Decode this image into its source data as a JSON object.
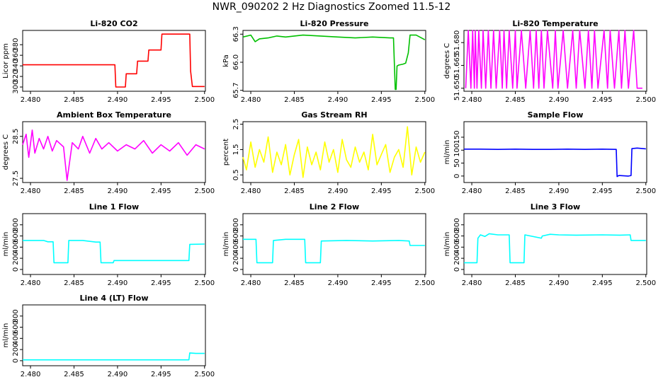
{
  "main_title": "NWR_090202  2 Hz Diagnostics Zoomed 11.5-12",
  "x_ticks": [
    "2.480",
    "2.485",
    "2.490",
    "2.495",
    "2.500"
  ],
  "chart_data": [
    {
      "type": "line",
      "title": "Li-820 CO2",
      "ylabel": "Licor ppm",
      "xlim": [
        2.4791,
        2.5001
      ],
      "ylim": [
        292,
        407
      ],
      "yticks": [
        "300",
        "320",
        "340",
        "360",
        "380"
      ],
      "color": "#ff0000",
      "x": [
        2.4791,
        2.4897,
        2.4898,
        2.4909,
        2.491,
        2.4922,
        2.4923,
        2.4935,
        2.4936,
        2.495,
        2.4951,
        2.4983,
        2.4984,
        2.4986,
        2.5
      ],
      "y": [
        342,
        342,
        300,
        300,
        325,
        325,
        349,
        349,
        370,
        370,
        400,
        400,
        330,
        301,
        301
      ]
    },
    {
      "type": "line",
      "title": "Li-820 Pressure",
      "ylabel": "kPa",
      "xlim": [
        2.4791,
        2.5001
      ],
      "ylim": [
        65.69,
        66.34
      ],
      "yticks": [
        "65.7",
        "66.0",
        "66.3"
      ],
      "color": "#00c000",
      "x": [
        2.4791,
        2.48,
        2.4805,
        2.481,
        2.482,
        2.483,
        2.484,
        2.486,
        2.488,
        2.49,
        2.492,
        2.494,
        2.496,
        2.4964,
        2.4966,
        2.4967,
        2.4968,
        2.497,
        2.4975,
        2.4978,
        2.4981,
        2.4983,
        2.499,
        2.5
      ],
      "y": [
        66.27,
        66.29,
        66.22,
        66.25,
        66.26,
        66.28,
        66.27,
        66.29,
        66.28,
        66.27,
        66.26,
        66.27,
        66.26,
        66.26,
        65.71,
        65.71,
        65.96,
        65.97,
        65.98,
        65.99,
        66.1,
        66.29,
        66.29,
        66.24
      ]
    },
    {
      "type": "line",
      "title": "Li-820 Temperature",
      "ylabel": "degrees C",
      "xlim": [
        2.4791,
        2.5001
      ],
      "ylim": [
        51.648,
        51.688
      ],
      "yticks": [
        "51.650",
        "51.665",
        "51.680"
      ],
      "color": "#ff00ff",
      "x": [
        2.4793,
        2.4796,
        2.4799,
        2.4801,
        2.4803,
        2.4804,
        2.4806,
        2.4808,
        2.4811,
        2.4813,
        2.4816,
        2.4819,
        2.4822,
        2.4825,
        2.4828,
        2.4832,
        2.4835,
        2.4837,
        2.484,
        2.4843,
        2.4847,
        2.485,
        2.4852,
        2.4857,
        2.4862,
        2.4867,
        2.4871,
        2.4874,
        2.4877,
        2.488,
        2.4883,
        2.4887,
        2.4893,
        2.4896,
        2.4899,
        2.4905,
        2.491,
        2.4916,
        2.492,
        2.4924,
        2.493,
        2.4934,
        2.4938,
        2.4941,
        2.4945,
        2.4952,
        2.4956,
        2.4959,
        2.4964,
        2.4969,
        2.4972,
        2.4976,
        2.498,
        2.4986,
        2.499,
        2.4996
      ],
      "y": [
        51.65,
        51.688,
        51.65,
        51.688,
        51.65,
        51.688,
        51.65,
        51.688,
        51.65,
        51.688,
        51.65,
        51.688,
        51.65,
        51.688,
        51.65,
        51.688,
        51.65,
        51.688,
        51.65,
        51.688,
        51.65,
        51.688,
        51.65,
        51.688,
        51.65,
        51.688,
        51.65,
        51.688,
        51.65,
        51.688,
        51.65,
        51.688,
        51.65,
        51.688,
        51.65,
        51.688,
        51.65,
        51.688,
        51.65,
        51.688,
        51.65,
        51.688,
        51.65,
        51.688,
        51.65,
        51.688,
        51.65,
        51.688,
        51.65,
        51.688,
        51.65,
        51.688,
        51.65,
        51.688,
        51.65,
        51.65
      ]
    },
    {
      "type": "line",
      "title": "Ambient Box Temperature",
      "ylabel": "degrees C",
      "xlim": [
        2.4791,
        2.5001
      ],
      "ylim": [
        27.4,
        28.85
      ],
      "yticks": [
        "27.5",
        "28.5"
      ],
      "color": "#ff00ff",
      "x": [
        2.4791,
        2.4795,
        2.4798,
        2.4802,
        2.4805,
        2.481,
        2.4815,
        2.482,
        2.4825,
        2.483,
        2.4838,
        2.4842,
        2.4848,
        2.4855,
        2.486,
        2.4868,
        2.4875,
        2.4882,
        2.489,
        2.49,
        2.491,
        2.492,
        2.493,
        2.494,
        2.495,
        2.496,
        2.497,
        2.498,
        2.499,
        2.5
      ],
      "y": [
        28.3,
        28.55,
        28.0,
        28.65,
        28.1,
        28.45,
        28.2,
        28.5,
        28.15,
        28.4,
        28.25,
        27.45,
        28.35,
        28.2,
        28.5,
        28.1,
        28.45,
        28.2,
        28.35,
        28.15,
        28.3,
        28.2,
        28.4,
        28.1,
        28.3,
        28.15,
        28.35,
        28.05,
        28.3,
        28.2
      ]
    },
    {
      "type": "line",
      "title": "Gas Stream RH",
      "ylabel": "percent",
      "xlim": [
        2.4791,
        2.5001
      ],
      "ylim": [
        0.2,
        2.6
      ],
      "yticks": [
        "0.5",
        "1.5",
        "2.5"
      ],
      "color": "#ffff00",
      "x": [
        2.4791,
        2.4795,
        2.48,
        2.4805,
        2.481,
        2.4815,
        2.482,
        2.4825,
        2.483,
        2.4835,
        2.484,
        2.4845,
        2.485,
        2.4855,
        2.486,
        2.4865,
        2.487,
        2.4875,
        2.488,
        2.4885,
        2.489,
        2.4895,
        2.49,
        2.4905,
        2.491,
        2.4915,
        2.492,
        2.4925,
        2.493,
        2.4935,
        2.494,
        2.4945,
        2.495,
        2.4955,
        2.496,
        2.4965,
        2.497,
        2.4975,
        2.498,
        2.4985,
        2.499,
        2.4995,
        2.5
      ],
      "y": [
        1.2,
        0.7,
        1.8,
        0.8,
        1.5,
        1.0,
        2.0,
        0.6,
        1.4,
        0.9,
        1.7,
        0.5,
        1.3,
        1.9,
        0.4,
        1.6,
        0.9,
        1.4,
        0.7,
        1.8,
        1.0,
        1.5,
        0.6,
        1.9,
        1.1,
        0.8,
        1.6,
        1.0,
        1.4,
        0.7,
        2.1,
        0.9,
        1.3,
        1.7,
        0.6,
        1.2,
        1.5,
        0.8,
        2.4,
        0.5,
        1.6,
        1.0,
        1.4
      ]
    },
    {
      "type": "line",
      "title": "Sample Flow",
      "ylabel": "ml/min",
      "xlim": [
        2.4791,
        2.5001
      ],
      "ylim": [
        -25,
        210
      ],
      "yticks": [
        "0",
        "50",
        "100",
        "150"
      ],
      "color": "#0000ff",
      "x": [
        2.4791,
        2.481,
        2.483,
        2.485,
        2.487,
        2.489,
        2.491,
        2.493,
        2.495,
        2.4966,
        2.4967,
        2.4969,
        2.498,
        2.4983,
        2.4984,
        2.499,
        2.5
      ],
      "y": [
        104,
        104,
        103,
        104,
        103,
        103,
        104,
        103,
        104,
        103,
        -2,
        2,
        0,
        2,
        106,
        108,
        105
      ]
    },
    {
      "type": "line",
      "title": "Line 1 Flow",
      "ylabel": "ml/min",
      "xlim": [
        2.4791,
        2.5001
      ],
      "ylim": [
        -90,
        1000
      ],
      "yticks": [
        "0",
        "200",
        "400",
        "600",
        "800"
      ],
      "color": "#00ffff",
      "x": [
        2.4791,
        2.4815,
        2.482,
        2.4826,
        2.4827,
        2.4843,
        2.4844,
        2.486,
        2.4875,
        2.488,
        2.4881,
        2.4895,
        2.4896,
        2.4982,
        2.4983,
        2.5
      ],
      "y": [
        520,
        520,
        495,
        495,
        120,
        120,
        520,
        520,
        490,
        490,
        120,
        120,
        160,
        160,
        450,
        455
      ]
    },
    {
      "type": "line",
      "title": "Line 2 Flow",
      "ylabel": "ml/min",
      "xlim": [
        2.4791,
        2.5001
      ],
      "ylim": [
        -90,
        1000
      ],
      "yticks": [
        "0",
        "200",
        "400",
        "600",
        "800"
      ],
      "color": "#00ffff",
      "x": [
        2.4791,
        2.4806,
        2.4807,
        2.4825,
        2.4826,
        2.484,
        2.486,
        2.4862,
        2.4863,
        2.488,
        2.4881,
        2.491,
        2.494,
        2.497,
        2.4982,
        2.4983,
        2.5
      ],
      "y": [
        540,
        540,
        120,
        120,
        520,
        540,
        540,
        540,
        120,
        120,
        510,
        520,
        510,
        520,
        510,
        430,
        430
      ]
    },
    {
      "type": "line",
      "title": "Line 3 Flow",
      "ylabel": "ml/min",
      "xlim": [
        2.4791,
        2.5001
      ],
      "ylim": [
        -90,
        1000
      ],
      "yticks": [
        "0",
        "200",
        "400",
        "600",
        "800"
      ],
      "color": "#00ffff",
      "x": [
        2.4791,
        2.4806,
        2.4807,
        2.481,
        2.4815,
        2.482,
        2.483,
        2.4843,
        2.4844,
        2.486,
        2.4861,
        2.488,
        2.4881,
        2.489,
        2.49,
        2.492,
        2.495,
        2.497,
        2.4982,
        2.4983,
        2.5
      ],
      "y": [
        120,
        120,
        560,
        620,
        590,
        640,
        620,
        620,
        120,
        120,
        620,
        560,
        600,
        630,
        620,
        615,
        620,
        615,
        620,
        520,
        520
      ]
    },
    {
      "type": "line",
      "title": "Line 4 (LT) Flow",
      "ylabel": "ml/min",
      "xlim": [
        2.4791,
        2.5001
      ],
      "ylim": [
        -90,
        1000
      ],
      "yticks": [
        "0",
        "200",
        "400",
        "600",
        "800"
      ],
      "color": "#00ffff",
      "x": [
        2.4791,
        2.485,
        2.49,
        2.495,
        2.4982,
        2.4983,
        2.499,
        2.5
      ],
      "y": [
        15,
        15,
        15,
        15,
        15,
        140,
        130,
        130
      ]
    }
  ]
}
